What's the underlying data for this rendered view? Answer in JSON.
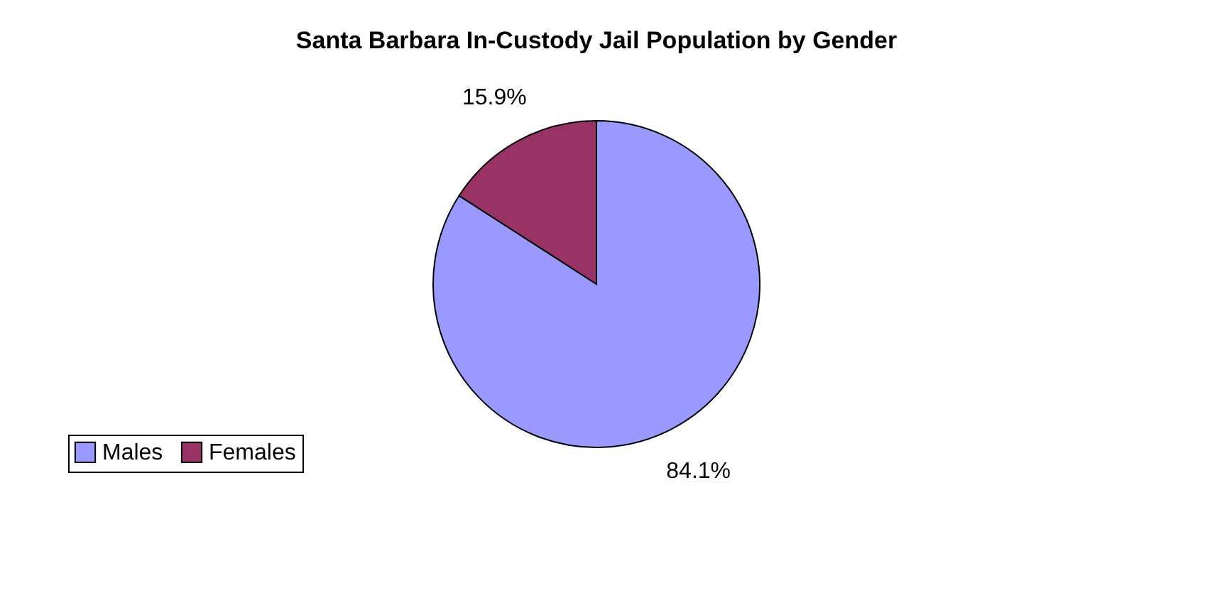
{
  "chart_data": {
    "type": "pie",
    "title": "Santa Barbara In-Custody Jail Population by Gender",
    "categories": [
      "Males",
      "Females"
    ],
    "values": [
      84.1,
      15.9
    ],
    "colors": [
      "#9999ff",
      "#993366"
    ],
    "value_labels": [
      "84.1%",
      "15.9%"
    ],
    "legend": "bottom left"
  }
}
